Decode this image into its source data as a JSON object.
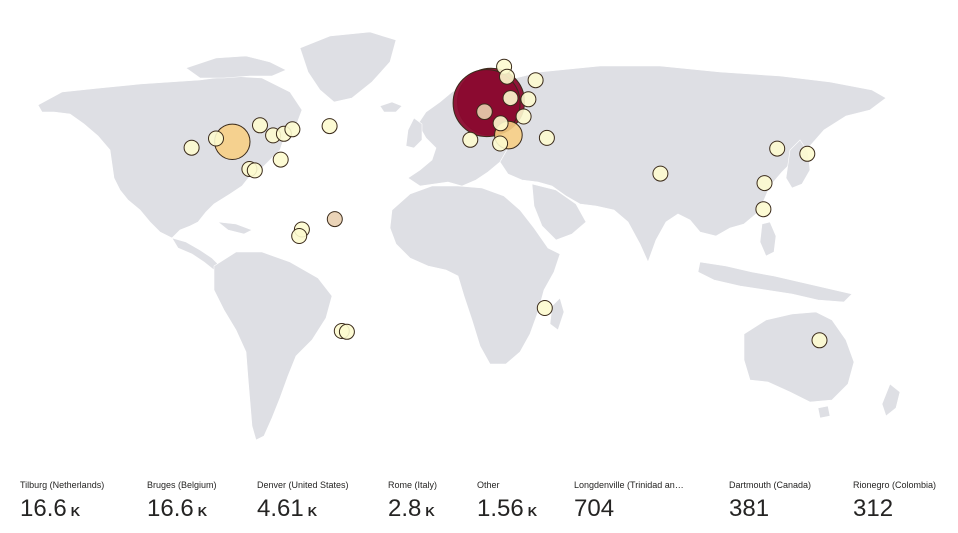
{
  "map": {
    "colors": {
      "land": "#dedfe4",
      "background": "#ffffff",
      "bubble_high": "#8b0a2f",
      "bubble_mid": "#f7cf85",
      "bubble_light": "#e9cfb0",
      "bubble_low": "#fdfbcf"
    },
    "locations": [
      {
        "name": "Tilburg (Netherlands)",
        "lon": 5.09,
        "lat": 51.56,
        "value": 16600
      },
      {
        "name": "Bruges (Belgium)",
        "lon": 3.22,
        "lat": 51.21,
        "value": 16600
      },
      {
        "name": "Denver (United States)",
        "lon": -104.99,
        "lat": 39.74,
        "value": 4610
      },
      {
        "name": "Rome (Italy)",
        "lon": 12.5,
        "lat": 41.9,
        "value": 2800
      },
      {
        "name": "Longdenville (Trinidad and Tobago)",
        "lon": -61.38,
        "lat": 10.5,
        "value": 704
      },
      {
        "name": "Dartmouth (Canada)",
        "lon": -63.57,
        "lat": 44.67,
        "value": 381
      },
      {
        "name": "Rionegro (Colombia)",
        "lon": -75.37,
        "lat": 6.15,
        "value": 312
      },
      {
        "name": "",
        "lon": -122.3,
        "lat": 37.8,
        "value": 120
      },
      {
        "name": "",
        "lon": -111.9,
        "lat": 40.8,
        "value": 120
      },
      {
        "name": "",
        "lon": -87.6,
        "lat": 41.8,
        "value": 120
      },
      {
        "name": "",
        "lon": -93.2,
        "lat": 44.9,
        "value": 120
      },
      {
        "name": "",
        "lon": -83.0,
        "lat": 42.3,
        "value": 120
      },
      {
        "name": "",
        "lon": -79.4,
        "lat": 43.7,
        "value": 120
      },
      {
        "name": "",
        "lon": -84.4,
        "lat": 33.7,
        "value": 120
      },
      {
        "name": "",
        "lon": -97.7,
        "lat": 30.3,
        "value": 120
      },
      {
        "name": "",
        "lon": -95.4,
        "lat": 29.8,
        "value": 120
      },
      {
        "name": "",
        "lon": -76.5,
        "lat": 3.4,
        "value": 120
      },
      {
        "name": "",
        "lon": -58.4,
        "lat": -34.6,
        "value": 120
      },
      {
        "name": "",
        "lon": -56.2,
        "lat": -34.9,
        "value": 120
      },
      {
        "name": "",
        "lon": -3.7,
        "lat": 40.4,
        "value": 120
      },
      {
        "name": "",
        "lon": 2.35,
        "lat": 48.86,
        "value": 900
      },
      {
        "name": "",
        "lon": 13.4,
        "lat": 52.5,
        "value": 160
      },
      {
        "name": "",
        "lon": 9.2,
        "lat": 45.5,
        "value": 300
      },
      {
        "name": "",
        "lon": 10.7,
        "lat": 59.9,
        "value": 140
      },
      {
        "name": "",
        "lon": 11.9,
        "lat": 57.7,
        "value": 140
      },
      {
        "name": "",
        "lon": 21.0,
        "lat": 52.2,
        "value": 140
      },
      {
        "name": "",
        "lon": 24.1,
        "lat": 56.9,
        "value": 140
      },
      {
        "name": "",
        "lon": 19.0,
        "lat": 47.5,
        "value": 140
      },
      {
        "name": "",
        "lon": 28.9,
        "lat": 41.0,
        "value": 140
      },
      {
        "name": "",
        "lon": 9.0,
        "lat": 39.2,
        "value": 120
      },
      {
        "name": "",
        "lon": 77.2,
        "lat": 28.6,
        "value": 120
      },
      {
        "name": "",
        "lon": 126.9,
        "lat": 37.5,
        "value": 120
      },
      {
        "name": "",
        "lon": 139.7,
        "lat": 35.7,
        "value": 120
      },
      {
        "name": "",
        "lon": 121.5,
        "lat": 25.0,
        "value": 120
      },
      {
        "name": "",
        "lon": 121.0,
        "lat": 14.6,
        "value": 120
      },
      {
        "name": "",
        "lon": 28.0,
        "lat": -26.2,
        "value": 120
      },
      {
        "name": "",
        "lon": 144.9,
        "lat": -37.8,
        "value": 120
      }
    ]
  },
  "kpis": [
    {
      "label": "Tilburg (Netherlands)",
      "value": "16.6",
      "suffix": "K"
    },
    {
      "label": "Bruges (Belgium)",
      "value": "16.6",
      "suffix": "K"
    },
    {
      "label": "Denver (United States)",
      "value": "4.61",
      "suffix": "K"
    },
    {
      "label": "Rome (Italy)",
      "value": "2.8",
      "suffix": "K"
    },
    {
      "label": "Other",
      "value": "1.56",
      "suffix": "K"
    },
    {
      "label": "Longdenville (Trinidad an…",
      "value": "704",
      "suffix": ""
    },
    {
      "label": "Dartmouth (Canada)",
      "value": "381",
      "suffix": ""
    },
    {
      "label": "Rionegro (Colombia)",
      "value": "312",
      "suffix": ""
    }
  ]
}
